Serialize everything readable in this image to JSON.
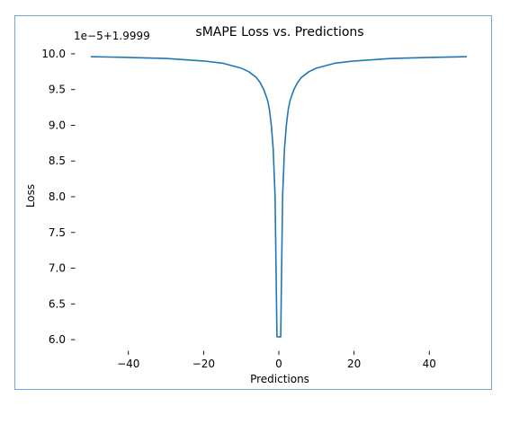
{
  "chart_data": {
    "type": "line",
    "title": "sMAPE Loss vs. Predictions",
    "xlabel": "Predictions",
    "ylabel": "Loss",
    "y_offset_text": "1e−5+1.9999",
    "xlim": [
      -55,
      55
    ],
    "ylim": [
      5.8,
      10.15
    ],
    "x_ticks": [
      -40,
      -20,
      0,
      20,
      40
    ],
    "x_tick_labels": [
      "−40",
      "−20",
      "0",
      "20",
      "40"
    ],
    "y_ticks": [
      6.0,
      6.5,
      7.0,
      7.5,
      8.0,
      8.5,
      9.0,
      9.5,
      10.0
    ],
    "y_tick_labels": [
      "6.0",
      "6.5",
      "7.0",
      "7.5",
      "8.0",
      "8.5",
      "9.0",
      "9.5",
      "10.0"
    ],
    "grid": false,
    "line_color": "#1f77b4",
    "series": [
      {
        "x": [
          -50,
          -40,
          -30,
          -20,
          -15,
          -10,
          -8,
          -6,
          -5,
          -4,
          -3,
          -2.5,
          -2,
          -1.5,
          -1,
          -0.5,
          0.5,
          1,
          1.5,
          2,
          2.5,
          3,
          4,
          5,
          6,
          8,
          10,
          15,
          20,
          30,
          40,
          50
        ],
        "values": [
          9.96,
          9.95,
          9.935,
          9.9,
          9.87,
          9.8,
          9.75,
          9.67,
          9.6,
          9.5,
          9.35,
          9.22,
          9.0,
          8.67,
          8.0,
          6.04,
          6.04,
          8.0,
          8.67,
          9.0,
          9.22,
          9.35,
          9.5,
          9.6,
          9.67,
          9.75,
          9.8,
          9.87,
          9.9,
          9.935,
          9.95,
          9.96
        ]
      }
    ]
  }
}
